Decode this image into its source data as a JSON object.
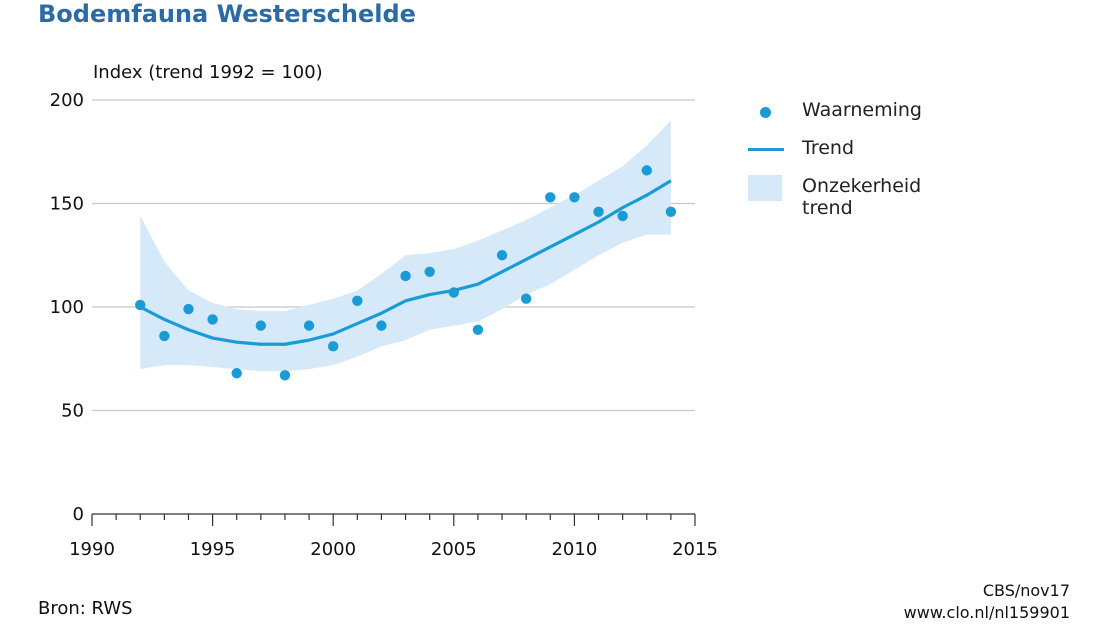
{
  "title": "Bodemfauna Westerschelde",
  "source": "Bron: RWS",
  "credit": [
    "CBS/nov17",
    "www.clo.nl/nl159901"
  ],
  "legend": {
    "observation": "Waarneming",
    "trend": "Trend",
    "uncertainty": "Onzekerheid trend"
  },
  "colors": {
    "title": "#2a6ba6",
    "series": "#1a9bd6",
    "band": "#d6e9f8",
    "grid": "#c8c8c8"
  },
  "chart_data": {
    "type": "line",
    "title": "Bodemfauna Westerschelde",
    "ylabel": "Index (trend 1992 = 100)",
    "xlabel": "",
    "xlim": [
      1990,
      2015
    ],
    "ylim": [
      0,
      200
    ],
    "xticks": [
      1990,
      1995,
      2000,
      2005,
      2010,
      2015
    ],
    "yticks": [
      0,
      50,
      100,
      150,
      200
    ],
    "grid": true,
    "legend_position": "right",
    "series": [
      {
        "name": "Waarneming",
        "kind": "scatter",
        "x": [
          1992,
          1993,
          1994,
          1995,
          1996,
          1997,
          1998,
          1999,
          2000,
          2001,
          2002,
          2003,
          2004,
          2005,
          2006,
          2007,
          2008,
          2009,
          2010,
          2011,
          2012,
          2013,
          2014
        ],
        "values": [
          101,
          86,
          99,
          94,
          68,
          91,
          67,
          91,
          81,
          103,
          91,
          115,
          117,
          107,
          89,
          125,
          104,
          153,
          153,
          146,
          144,
          166,
          146
        ]
      },
      {
        "name": "Trend",
        "kind": "line",
        "x": [
          1992,
          1993,
          1994,
          1995,
          1996,
          1997,
          1998,
          1999,
          2000,
          2001,
          2002,
          2003,
          2004,
          2005,
          2006,
          2007,
          2008,
          2009,
          2010,
          2011,
          2012,
          2013,
          2014
        ],
        "values": [
          100,
          94,
          89,
          85,
          83,
          82,
          82,
          84,
          87,
          92,
          97,
          103,
          106,
          108,
          111,
          117,
          123,
          129,
          135,
          141,
          148,
          154,
          161
        ]
      },
      {
        "name": "Onzekerheid trend",
        "kind": "band",
        "x": [
          1992,
          1993,
          1994,
          1995,
          1996,
          1997,
          1998,
          1999,
          2000,
          2001,
          2002,
          2003,
          2004,
          2005,
          2006,
          2007,
          2008,
          2009,
          2010,
          2011,
          2012,
          2013,
          2014
        ],
        "lower": [
          70,
          72,
          72,
          71,
          70,
          69,
          69,
          70,
          72,
          76,
          81,
          84,
          89,
          91,
          93,
          99,
          106,
          111,
          118,
          125,
          131,
          135,
          135
        ],
        "upper": [
          144,
          122,
          108,
          102,
          99,
          98,
          98,
          101,
          104,
          108,
          116,
          125,
          126,
          128,
          132,
          137,
          142,
          148,
          154,
          161,
          168,
          178,
          190
        ]
      }
    ]
  }
}
